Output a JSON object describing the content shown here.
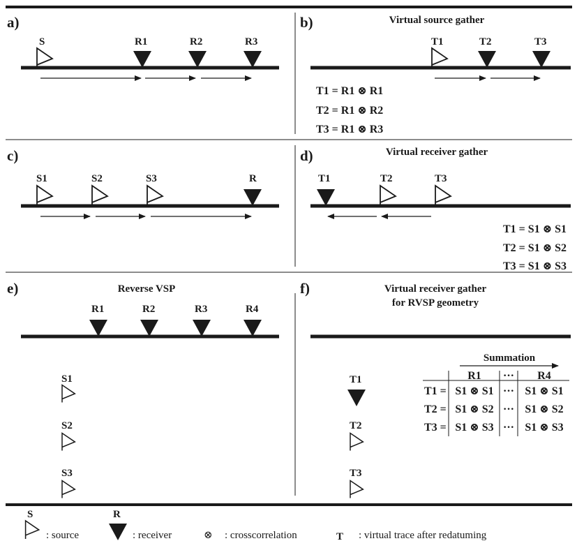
{
  "panels": {
    "a": {
      "label": "a)",
      "sources": [
        "S"
      ],
      "receivers": [
        "R1",
        "R2",
        "R3"
      ]
    },
    "b": {
      "label": "b)",
      "title": "Virtual source gather",
      "traces": [
        "T1",
        "T2",
        "T3"
      ],
      "equations": [
        "T1 = R1 ⊗ R1",
        "T2 = R1 ⊗ R2",
        "T3 = R1 ⊗ R3"
      ]
    },
    "c": {
      "label": "c)",
      "sources": [
        "S1",
        "S2",
        "S3"
      ],
      "receivers": [
        "R"
      ]
    },
    "d": {
      "label": "d)",
      "title": "Virtual receiver gather",
      "traces": [
        "T1",
        "T2",
        "T3"
      ],
      "equations": [
        "T1 = S1 ⊗ S1",
        "T2 = S1 ⊗ S2",
        "T3 = S1 ⊗ S3"
      ]
    },
    "e": {
      "label": "e)",
      "title": "Reverse VSP",
      "receivers": [
        "R1",
        "R2",
        "R3",
        "R4"
      ],
      "sources": [
        "S1",
        "S2",
        "S3"
      ]
    },
    "f": {
      "label": "f)",
      "title_line1": "Virtual receiver gather",
      "title_line2": "for RVSP geometry",
      "traces": [
        "T1",
        "T2",
        "T3"
      ],
      "summation": "Summation",
      "table": {
        "headers": [
          "R1",
          "···",
          "R4"
        ],
        "rows": [
          {
            "lhs": "T1 =",
            "first": "S1 ⊗ S1",
            "dots": "···",
            "last": "S1 ⊗ S1"
          },
          {
            "lhs": "T2 =",
            "first": "S1 ⊗ S2",
            "dots": "···",
            "last": "S1 ⊗ S2"
          },
          {
            "lhs": "T3 =",
            "first": "S1 ⊗ S3",
            "dots": "···",
            "last": "S1 ⊗ S3"
          }
        ]
      }
    }
  },
  "legend": {
    "source_symbol": "S",
    "source_text": ": source",
    "receiver_symbol": "R",
    "receiver_text": ": receiver",
    "xcorr_symbol": "⊗",
    "xcorr_text": ": crosscorrelation",
    "trace_symbol": "T",
    "trace_text": ": virtual trace after redatuming"
  }
}
